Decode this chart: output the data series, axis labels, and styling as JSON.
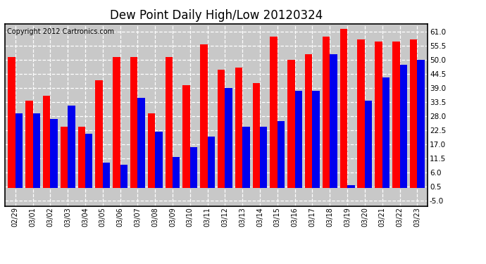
{
  "title": "Dew Point Daily High/Low 20120324",
  "copyright": "Copyright 2012 Cartronics.com",
  "dates": [
    "02/29",
    "03/01",
    "03/02",
    "03/03",
    "03/04",
    "03/05",
    "03/06",
    "03/07",
    "03/08",
    "03/09",
    "03/10",
    "03/11",
    "03/12",
    "03/13",
    "03/14",
    "03/15",
    "03/16",
    "03/17",
    "03/18",
    "03/19",
    "03/20",
    "03/21",
    "03/22",
    "03/23"
  ],
  "highs": [
    51,
    34,
    36,
    24,
    24,
    42,
    51,
    51,
    29,
    51,
    40,
    56,
    46,
    47,
    41,
    59,
    50,
    52,
    59,
    62,
    58,
    57,
    57,
    58
  ],
  "lows": [
    29,
    29,
    27,
    32,
    21,
    10,
    9,
    35,
    22,
    12,
    16,
    20,
    39,
    24,
    24,
    26,
    38,
    38,
    52,
    1,
    34,
    43,
    48,
    50
  ],
  "high_color": "#ff0000",
  "low_color": "#0000ee",
  "bg_color": "#ffffff",
  "plot_bg": "#c8c8c8",
  "grid_color": "#ffffff",
  "yticks": [
    -5.0,
    0.5,
    6.0,
    11.5,
    17.0,
    22.5,
    28.0,
    33.5,
    39.0,
    44.5,
    50.0,
    55.5,
    61.0
  ],
  "ylim_min": -7,
  "ylim_max": 64,
  "title_fontsize": 12,
  "copyright_fontsize": 7,
  "xtick_fontsize": 7,
  "ytick_fontsize": 7.5,
  "bar_width": 0.42
}
